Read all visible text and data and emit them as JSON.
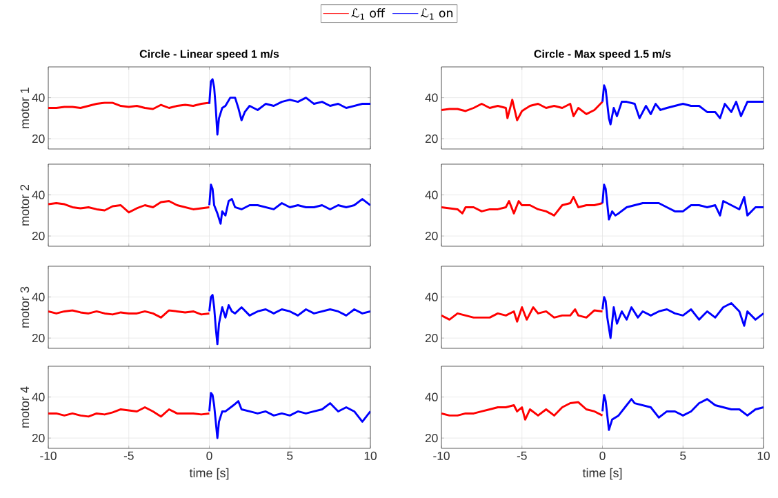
{
  "chart_data": [
    {
      "type": "line",
      "title": "Circle - Linear speed 1 m/s",
      "ylabel": "motor 1",
      "xlim": [
        -10,
        10
      ],
      "xticks": [
        -10,
        -5,
        0,
        5,
        10
      ],
      "ylim": [
        15,
        55
      ],
      "yticks": [
        20,
        40
      ],
      "grid": true,
      "legend": "top",
      "tick_labels": "y",
      "series": [
        {
          "name": "ℒ$_{1}$ off",
          "color": "#ff0000",
          "x": [
            -10,
            -9.5,
            -9,
            -8.5,
            -8,
            -7.5,
            -7,
            -6.5,
            -6,
            -5.5,
            -5,
            -4.5,
            -4,
            -3.5,
            -3,
            -2.5,
            -2,
            -1.5,
            -1,
            -0.5,
            0
          ],
          "values": [
            35,
            35,
            35.5,
            35.5,
            35,
            36,
            37,
            37.5,
            37.5,
            36,
            35.5,
            36,
            35,
            34.5,
            36.5,
            35,
            36,
            36.5,
            36,
            37,
            37.5
          ]
        },
        {
          "name": "ℒ$_{1}$ on",
          "color": "#0000ff",
          "x": [
            0,
            0.1,
            0.2,
            0.3,
            0.4,
            0.5,
            0.6,
            0.8,
            1,
            1.3,
            1.6,
            1.8,
            2,
            2.2,
            2.5,
            3,
            3.5,
            4,
            4.5,
            5,
            5.5,
            6,
            6.5,
            7,
            7.5,
            8,
            8.5,
            9,
            9.5,
            10
          ],
          "values": [
            37,
            48,
            49,
            45,
            35,
            22,
            30,
            35,
            36,
            40,
            40,
            35,
            29,
            33,
            36,
            34,
            37,
            36,
            38,
            39,
            38,
            40,
            37,
            38,
            36,
            37,
            35,
            36,
            37,
            37
          ]
        }
      ]
    },
    {
      "type": "line",
      "title": "Circle - Max speed 1.5 m/s",
      "xlim": [
        -10,
        10
      ],
      "xticks": [
        -10,
        -5,
        0,
        5,
        10
      ],
      "ylim": [
        15,
        55
      ],
      "yticks": [
        20,
        40
      ],
      "grid": true,
      "tick_labels": "y",
      "series": [
        {
          "color": "#ff0000",
          "x": [
            -10,
            -9.5,
            -9,
            -8.5,
            -8,
            -7.5,
            -7,
            -6.5,
            -6,
            -5.9,
            -5.6,
            -5.3,
            -5,
            -4.5,
            -4,
            -3.5,
            -3,
            -2.5,
            -2,
            -1.8,
            -1.5,
            -1,
            -0.5,
            0
          ],
          "values": [
            34,
            34.5,
            34.5,
            33.5,
            35,
            37,
            35,
            36,
            35,
            30,
            39,
            29,
            33.5,
            36,
            37,
            35,
            36,
            35,
            37,
            31,
            35,
            32,
            34,
            38
          ]
        },
        {
          "color": "#0000ff",
          "x": [
            0,
            0.1,
            0.2,
            0.4,
            0.5,
            0.7,
            0.9,
            1.2,
            1.5,
            2,
            2.3,
            2.7,
            3,
            3.3,
            3.6,
            4,
            4.5,
            5,
            5.5,
            6,
            6.5,
            7,
            7.3,
            7.6,
            8,
            8.3,
            8.6,
            9,
            9.5,
            10
          ],
          "values": [
            38,
            46,
            44,
            30,
            27,
            35,
            31,
            38,
            38,
            37,
            30,
            36,
            32,
            37,
            34,
            35,
            36,
            37,
            36,
            36,
            33,
            33,
            30,
            37,
            33,
            38,
            31,
            38,
            38,
            38
          ]
        }
      ]
    },
    {
      "type": "line",
      "ylabel": "motor 2",
      "xlim": [
        -10,
        10
      ],
      "xticks": [
        -10,
        -5,
        0,
        5,
        10
      ],
      "ylim": [
        15,
        55
      ],
      "yticks": [
        20,
        40
      ],
      "grid": true,
      "tick_labels": "y",
      "series": [
        {
          "color": "#ff0000",
          "x": [
            -10,
            -9.5,
            -9,
            -8.5,
            -8,
            -7.5,
            -7,
            -6.5,
            -6,
            -5.5,
            -5,
            -4.5,
            -4,
            -3.5,
            -3,
            -2.5,
            -2,
            -1.5,
            -1,
            -0.5,
            0
          ],
          "values": [
            35.5,
            36,
            35.5,
            34,
            33.5,
            34,
            33,
            32.5,
            34.5,
            35,
            31.5,
            33.5,
            35,
            34,
            36.5,
            37,
            35,
            34,
            33,
            33.5,
            34
          ]
        },
        {
          "color": "#0000ff",
          "x": [
            0,
            0.1,
            0.2,
            0.3,
            0.5,
            0.7,
            0.8,
            1,
            1.2,
            1.4,
            1.6,
            2,
            2.5,
            3,
            3.5,
            4,
            4.5,
            5,
            5.5,
            6,
            6.5,
            7,
            7.5,
            8,
            8.5,
            9,
            9.5,
            10
          ],
          "values": [
            35,
            45,
            43,
            35,
            31,
            26,
            32,
            30,
            37,
            38,
            34,
            33,
            35,
            35,
            34,
            33,
            36,
            34,
            35,
            34,
            34,
            35,
            33,
            35,
            34,
            35,
            38,
            35
          ]
        }
      ]
    },
    {
      "type": "line",
      "xlim": [
        -10,
        10
      ],
      "xticks": [
        -10,
        -5,
        0,
        5,
        10
      ],
      "ylim": [
        15,
        55
      ],
      "yticks": [
        20,
        40
      ],
      "grid": true,
      "tick_labels": "y",
      "series": [
        {
          "color": "#ff0000",
          "x": [
            -10,
            -9,
            -8.7,
            -8.5,
            -8,
            -7.5,
            -7,
            -6.5,
            -6,
            -5.8,
            -5.5,
            -5.2,
            -5,
            -4.5,
            -4,
            -3.5,
            -3,
            -2.5,
            -2,
            -1.8,
            -1.5,
            -1,
            -0.5,
            0
          ],
          "values": [
            34,
            33,
            31,
            34,
            34,
            32,
            33,
            33,
            34,
            37,
            31,
            37,
            35,
            35,
            33,
            32,
            30,
            35,
            36,
            39,
            34,
            35,
            35,
            36
          ]
        },
        {
          "color": "#0000ff",
          "x": [
            0,
            0.1,
            0.2,
            0.4,
            0.6,
            0.8,
            1,
            1.5,
            2,
            2.5,
            3,
            3.5,
            4,
            4.5,
            5,
            5.5,
            6,
            6.5,
            7,
            7.3,
            7.5,
            8,
            8.5,
            8.8,
            9,
            9.5,
            10
          ],
          "values": [
            36,
            45,
            43,
            28,
            32,
            30,
            31,
            34,
            35,
            36,
            36,
            36,
            34,
            32,
            32,
            35,
            35,
            34,
            35,
            30,
            37,
            35,
            33,
            39,
            30,
            34,
            34
          ]
        }
      ]
    },
    {
      "type": "line",
      "ylabel": "motor 3",
      "xlim": [
        -10,
        10
      ],
      "xticks": [
        -10,
        -5,
        0,
        5,
        10
      ],
      "ylim": [
        15,
        55
      ],
      "yticks": [
        20,
        40
      ],
      "grid": true,
      "tick_labels": "y",
      "series": [
        {
          "color": "#ff0000",
          "x": [
            -10,
            -9.5,
            -9,
            -8.5,
            -8,
            -7.5,
            -7,
            -6.5,
            -6,
            -5.5,
            -5,
            -4.5,
            -4,
            -3.5,
            -3,
            -2.5,
            -2,
            -1.5,
            -1,
            -0.5,
            0
          ],
          "values": [
            33,
            32,
            33,
            33.5,
            32.5,
            32,
            33,
            32,
            31.5,
            32.5,
            32,
            32,
            33,
            32,
            30,
            33.5,
            33,
            32.5,
            33,
            31.5,
            32
          ]
        },
        {
          "color": "#0000ff",
          "x": [
            0,
            0.1,
            0.2,
            0.3,
            0.4,
            0.5,
            0.6,
            0.8,
            1,
            1.2,
            1.4,
            1.6,
            2,
            2.5,
            3,
            3.5,
            4,
            4.5,
            5,
            5.5,
            6,
            6.5,
            7,
            7.5,
            8,
            8.5,
            9,
            9.5,
            10
          ],
          "values": [
            33,
            40,
            41,
            35,
            25,
            17,
            27,
            35,
            30,
            36,
            33,
            32,
            35,
            31,
            33,
            34,
            32,
            34,
            33,
            31,
            34,
            32,
            33,
            34,
            33,
            31,
            34,
            32,
            33
          ]
        }
      ]
    },
    {
      "type": "line",
      "xlim": [
        -10,
        10
      ],
      "xticks": [
        -10,
        -5,
        0,
        5,
        10
      ],
      "ylim": [
        15,
        55
      ],
      "yticks": [
        20,
        40
      ],
      "grid": true,
      "tick_labels": "y",
      "series": [
        {
          "color": "#ff0000",
          "x": [
            -10,
            -9.5,
            -9,
            -8.5,
            -8,
            -7.5,
            -7,
            -6.5,
            -6,
            -5.5,
            -5.3,
            -5,
            -4.7,
            -4.3,
            -4,
            -3.5,
            -3,
            -2.5,
            -2,
            -1.7,
            -1.5,
            -1,
            -0.5,
            0
          ],
          "values": [
            31,
            29,
            32,
            31,
            30,
            30,
            30,
            32,
            31,
            33,
            28,
            35,
            29,
            35,
            32,
            33,
            30,
            31,
            31,
            34,
            31,
            30,
            33.5,
            33
          ]
        },
        {
          "color": "#0000ff",
          "x": [
            0,
            0.1,
            0.2,
            0.3,
            0.5,
            0.7,
            0.9,
            1.2,
            1.5,
            1.8,
            2.2,
            2.5,
            3,
            3.5,
            4,
            4.5,
            5,
            5.5,
            6,
            6.5,
            7,
            7.5,
            8,
            8.5,
            8.8,
            9,
            9.5,
            10
          ],
          "values": [
            34,
            40,
            38,
            30,
            20,
            35,
            27,
            33,
            29,
            35,
            30,
            33,
            31,
            33,
            34,
            32,
            31,
            34,
            29,
            33,
            30,
            35,
            37,
            33,
            26,
            33,
            29,
            32
          ]
        }
      ]
    },
    {
      "type": "line",
      "ylabel": "motor 4",
      "xlabel": "time [s]",
      "xlim": [
        -10,
        10
      ],
      "xticks": [
        -10,
        -5,
        0,
        5,
        10
      ],
      "ylim": [
        15,
        55
      ],
      "yticks": [
        20,
        40
      ],
      "grid": true,
      "series": [
        {
          "color": "#ff0000",
          "x": [
            -10,
            -9.5,
            -9,
            -8.5,
            -8,
            -7.5,
            -7,
            -6.5,
            -6,
            -5.5,
            -5,
            -4.5,
            -4,
            -3.5,
            -3,
            -2.5,
            -2,
            -1.5,
            -1,
            -0.5,
            0
          ],
          "values": [
            32,
            32,
            31,
            32,
            31,
            30.5,
            32,
            31.5,
            32.5,
            34,
            33.5,
            33,
            35,
            33,
            30.5,
            34,
            32,
            32,
            32,
            31.5,
            32
          ]
        },
        {
          "color": "#0000ff",
          "x": [
            0,
            0.1,
            0.2,
            0.3,
            0.4,
            0.5,
            0.6,
            0.8,
            1,
            1.5,
            1.8,
            2,
            2.5,
            3,
            3.5,
            4,
            4.5,
            5,
            5.5,
            6,
            6.5,
            7,
            7.5,
            8,
            8.5,
            9,
            9.5,
            10
          ],
          "values": [
            33,
            42,
            41,
            36,
            28,
            20,
            28,
            33,
            33,
            36,
            38,
            34,
            33,
            32,
            33,
            31,
            32,
            31,
            33,
            32,
            33,
            34,
            37,
            33,
            35,
            33,
            28,
            33
          ]
        }
      ]
    },
    {
      "type": "line",
      "xlabel": "time [s]",
      "xlim": [
        -10,
        10
      ],
      "xticks": [
        -10,
        -5,
        0,
        5,
        10
      ],
      "ylim": [
        15,
        55
      ],
      "yticks": [
        20,
        40
      ],
      "grid": true,
      "series": [
        {
          "color": "#ff0000",
          "x": [
            -10,
            -9.5,
            -9,
            -8.5,
            -8,
            -7.5,
            -7,
            -6.5,
            -6,
            -5.5,
            -5.3,
            -5,
            -4.8,
            -4.5,
            -4,
            -3.5,
            -3,
            -2.5,
            -2,
            -1.5,
            -1,
            -0.5,
            0
          ],
          "values": [
            32,
            31,
            31,
            32,
            32,
            33,
            34,
            35,
            35,
            36,
            33,
            35,
            29,
            34,
            31,
            34,
            31,
            35,
            37,
            37.5,
            34,
            33,
            31
          ]
        },
        {
          "color": "#0000ff",
          "x": [
            0,
            0.1,
            0.2,
            0.4,
            0.6,
            1,
            1.5,
            1.8,
            2,
            2.5,
            3,
            3.5,
            4,
            4.5,
            5,
            5.5,
            6,
            6.5,
            7,
            7.5,
            8,
            8.5,
            9,
            9.5,
            10
          ],
          "values": [
            33,
            41,
            38,
            24,
            29,
            31,
            36,
            39,
            37,
            36,
            35,
            30,
            33,
            33,
            31,
            33,
            37,
            39,
            36,
            35,
            34,
            34,
            31,
            34,
            35
          ]
        }
      ]
    }
  ]
}
